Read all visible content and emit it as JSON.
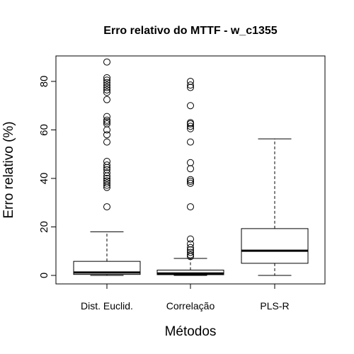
{
  "chart_data": {
    "type": "boxplot",
    "title": "Erro relativo do MTTF - w_c1355",
    "xlabel": "Métodos",
    "ylabel": "Erro relativo (%)",
    "categories": [
      "Dist. Euclid.",
      "Correlação",
      "PLS-R"
    ],
    "y_ticks": [
      0,
      20,
      40,
      60,
      80
    ],
    "ylim": [
      -3.5,
      90.5
    ],
    "grid": false,
    "boxes": [
      {
        "name": "Dist. Euclid.",
        "whisker_low": 0.0,
        "q1": 0.4,
        "median": 1.2,
        "q3": 5.8,
        "whisker_high": 18.0,
        "outliers": [
          28.3,
          36.3,
          37.2,
          38.1,
          39.0,
          40.0,
          41.0,
          42.3,
          43.6,
          44.5,
          45.5,
          47.0,
          55.0,
          58.0,
          60.0,
          62.5,
          63.3,
          64.0,
          65.5,
          72.5,
          75.5,
          76.5,
          77.5,
          78.5,
          79.5,
          80.5,
          81.5,
          88.0
        ]
      },
      {
        "name": "Correlação",
        "whisker_low": 0.0,
        "q1": 0.3,
        "median": 0.8,
        "q3": 2.2,
        "whisker_high": 7.0,
        "outliers": [
          7.8,
          8.5,
          9.5,
          10.5,
          11.5,
          13.0,
          15.0,
          28.3,
          38.0,
          38.8,
          39.5,
          44.0,
          46.5,
          55.0,
          60.5,
          61.5,
          62.5,
          63.0,
          70.0,
          77.5,
          78.5,
          80.0
        ]
      },
      {
        "name": "PLS-R",
        "whisker_low": 0.0,
        "q1": 5.0,
        "median": 10.2,
        "q3": 19.3,
        "whisker_high": 56.3,
        "outliers": []
      }
    ]
  }
}
